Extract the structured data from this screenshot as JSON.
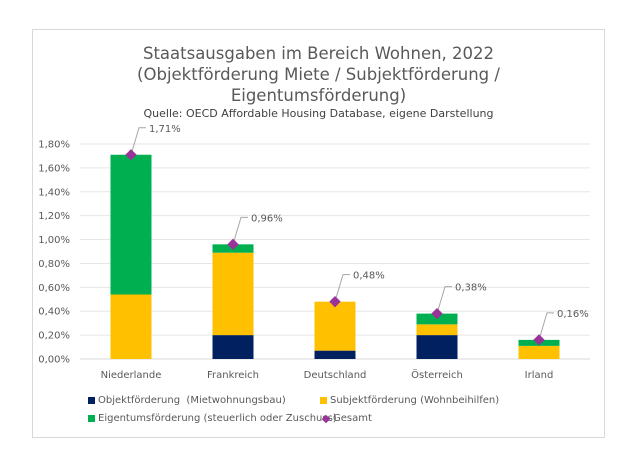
{
  "chart_data": {
    "type": "bar",
    "stacked": true,
    "title": [
      "Staatsausgaben im Bereich Wohnen, 2022",
      "(Objektförderung Miete / Subjektförderung /",
      "Eigentumsförderung)"
    ],
    "subtitle": "Quelle: OECD Affordable Housing Database, eigene Darstellung",
    "xlabel": "",
    "ylabel": "",
    "ylim": [
      0,
      1.8
    ],
    "yticks": [
      "0,00%",
      "0,20%",
      "0,40%",
      "0,60%",
      "0,80%",
      "1,00%",
      "1,20%",
      "1,40%",
      "1,60%",
      "1,80%"
    ],
    "grid": true,
    "legend_position": "bottom",
    "categories": [
      "Niederlande",
      "Frankreich",
      "Deutschland",
      "Österreich",
      "Irland"
    ],
    "series": [
      {
        "name": "Objektförderung  (Mietwohnungsbau)",
        "color": "#002060",
        "values": [
          0.0,
          0.2,
          0.07,
          0.2,
          0.0
        ]
      },
      {
        "name": "Subjektförderung (Wohnbeihilfen)",
        "color": "#FFC000",
        "values": [
          0.54,
          0.69,
          0.41,
          0.09,
          0.11
        ]
      },
      {
        "name": "Eigentumsförderung (steuerlich oder Zuschuss)",
        "color": "#00B050",
        "values": [
          1.17,
          0.07,
          0.0,
          0.09,
          0.05
        ]
      }
    ],
    "total": {
      "name": "Gesamt",
      "color": "#993399",
      "marker": "diamond",
      "values": [
        1.71,
        0.96,
        0.48,
        0.38,
        0.16
      ],
      "labels": [
        "1,71%",
        "0,96%",
        "0,48%",
        "0,38%",
        "0,16%"
      ]
    }
  }
}
